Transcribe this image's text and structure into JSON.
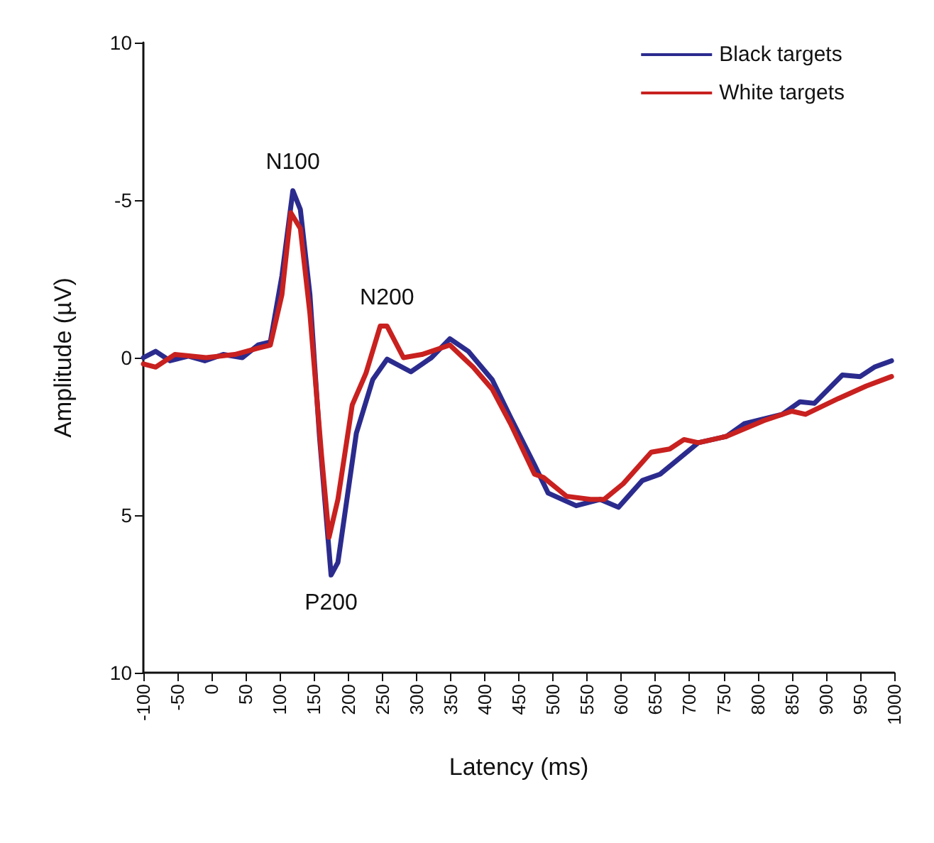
{
  "chart_data": {
    "type": "line",
    "xlabel": "Latency (ms)",
    "ylabel": "Amplitude (µV)",
    "xlim": [
      -100,
      1000
    ],
    "xticks": [
      -100,
      -50,
      0,
      50,
      100,
      150,
      200,
      250,
      300,
      350,
      400,
      450,
      500,
      550,
      600,
      650,
      700,
      750,
      800,
      850,
      900,
      950,
      1000
    ],
    "ylim": [
      10,
      -10
    ],
    "yticks": [
      {
        "value": -10,
        "label": "10"
      },
      -5,
      0,
      5,
      10
    ],
    "grid": false,
    "legend": "top right",
    "marker": "none",
    "line_style": "solid",
    "annotations": [
      {
        "text": "N100",
        "x": 119,
        "y": -5.3
      },
      {
        "text": "N200",
        "x": 257,
        "y": -1.0
      },
      {
        "text": "P200",
        "x": 175,
        "y": 6.9
      }
    ],
    "series": [
      {
        "name": "Black targets",
        "color": "#2b2b8e",
        "x": [
          -100,
          -82,
          -61,
          -34,
          -10,
          17,
          45,
          68,
          86,
          103,
          119,
          130,
          144,
          158,
          175,
          185,
          212,
          236,
          257,
          292,
          322,
          349,
          376,
          411,
          438,
          473,
          493,
          534,
          569,
          596,
          631,
          657,
          713,
          754,
          780,
          836,
          862,
          883,
          924,
          950,
          971,
          996
        ],
        "values": [
          0,
          -0.2,
          0.1,
          -0.05,
          0.1,
          -0.1,
          0,
          -0.4,
          -0.5,
          -2.6,
          -5.3,
          -4.7,
          -2.0,
          2.5,
          6.9,
          6.5,
          2.4,
          0.7,
          0.05,
          0.45,
          0,
          -0.6,
          -0.2,
          0.7,
          1.9,
          3.4,
          4.3,
          4.7,
          4.5,
          4.75,
          3.9,
          3.7,
          2.7,
          2.5,
          2.1,
          1.8,
          1.4,
          1.45,
          0.55,
          0.6,
          0.3,
          0.1
        ]
      },
      {
        "name": "White targets",
        "color": "#c8211f",
        "x": [
          -100,
          -82,
          -54,
          -8,
          34,
          68,
          86,
          103,
          116,
          130,
          144,
          161,
          172,
          185,
          206,
          226,
          247,
          257,
          281,
          308,
          349,
          383,
          411,
          438,
          473,
          486,
          520,
          555,
          575,
          603,
          644,
          671,
          692,
          713,
          754,
          809,
          850,
          870,
          918,
          959,
          996
        ],
        "values": [
          0.2,
          0.3,
          -0.1,
          0,
          -0.1,
          -0.3,
          -0.4,
          -2.0,
          -4.6,
          -4.1,
          -1.4,
          3.1,
          5.7,
          4.5,
          1.5,
          0.5,
          -1.0,
          -1.0,
          0,
          -0.1,
          -0.4,
          0.3,
          1.0,
          2.1,
          3.7,
          3.8,
          4.4,
          4.5,
          4.5,
          4.0,
          3.0,
          2.9,
          2.6,
          2.7,
          2.5,
          2.0,
          1.7,
          1.8,
          1.3,
          0.9,
          0.6
        ]
      }
    ]
  }
}
